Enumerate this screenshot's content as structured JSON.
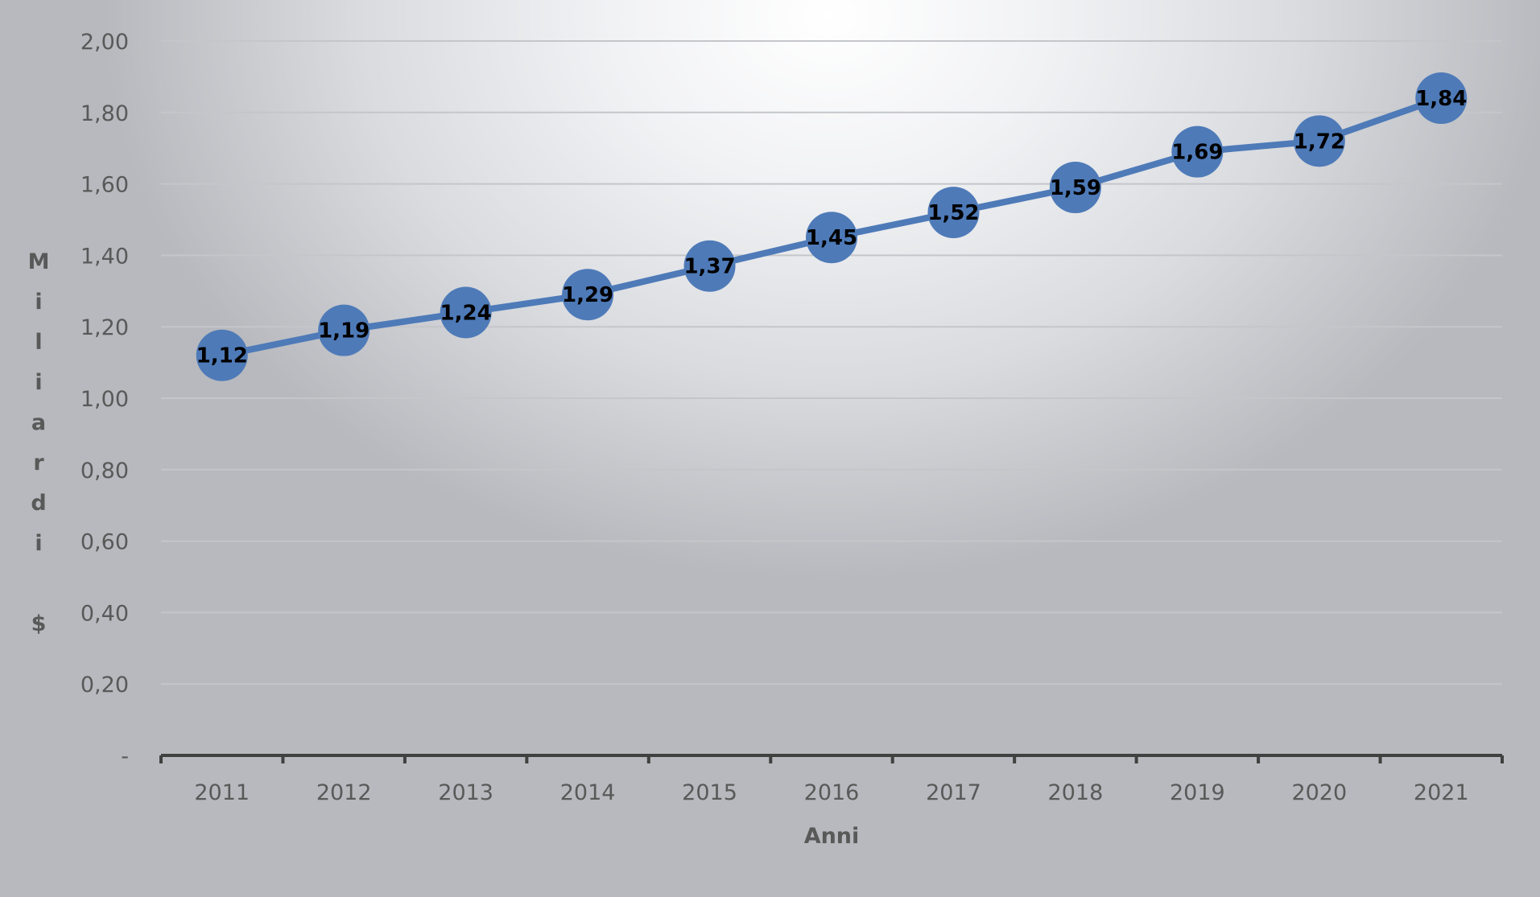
{
  "chart_data": {
    "type": "line",
    "title": "",
    "xlabel": "Anni",
    "ylabel": "Miliardi $",
    "categories": [
      "2011",
      "2012",
      "2013",
      "2014",
      "2015",
      "2016",
      "2017",
      "2018",
      "2019",
      "2020",
      "2021"
    ],
    "values": [
      1.12,
      1.19,
      1.24,
      1.29,
      1.37,
      1.45,
      1.52,
      1.59,
      1.69,
      1.72,
      1.84
    ],
    "data_labels": [
      "1,12",
      "1,19",
      "1,24",
      "1,29",
      "1,37",
      "1,45",
      "1,52",
      "1,59",
      "1,69",
      "1,72",
      "1,84"
    ],
    "y_ticks": [
      0,
      0.2,
      0.4,
      0.6,
      0.8,
      1.0,
      1.2,
      1.4,
      1.6,
      1.8,
      2.0
    ],
    "y_tick_labels": [
      "-",
      "0,20",
      "0,40",
      "0,60",
      "0,80",
      "1,00",
      "1,20",
      "1,40",
      "1,60",
      "1,80",
      "2,00"
    ],
    "ylim": [
      0,
      2.0
    ],
    "grid": true,
    "legend": false,
    "colors": {
      "series": "#4e7ab8",
      "grid": "#c4c6ca",
      "axis": "#404040",
      "tick_text": "#595959"
    }
  }
}
